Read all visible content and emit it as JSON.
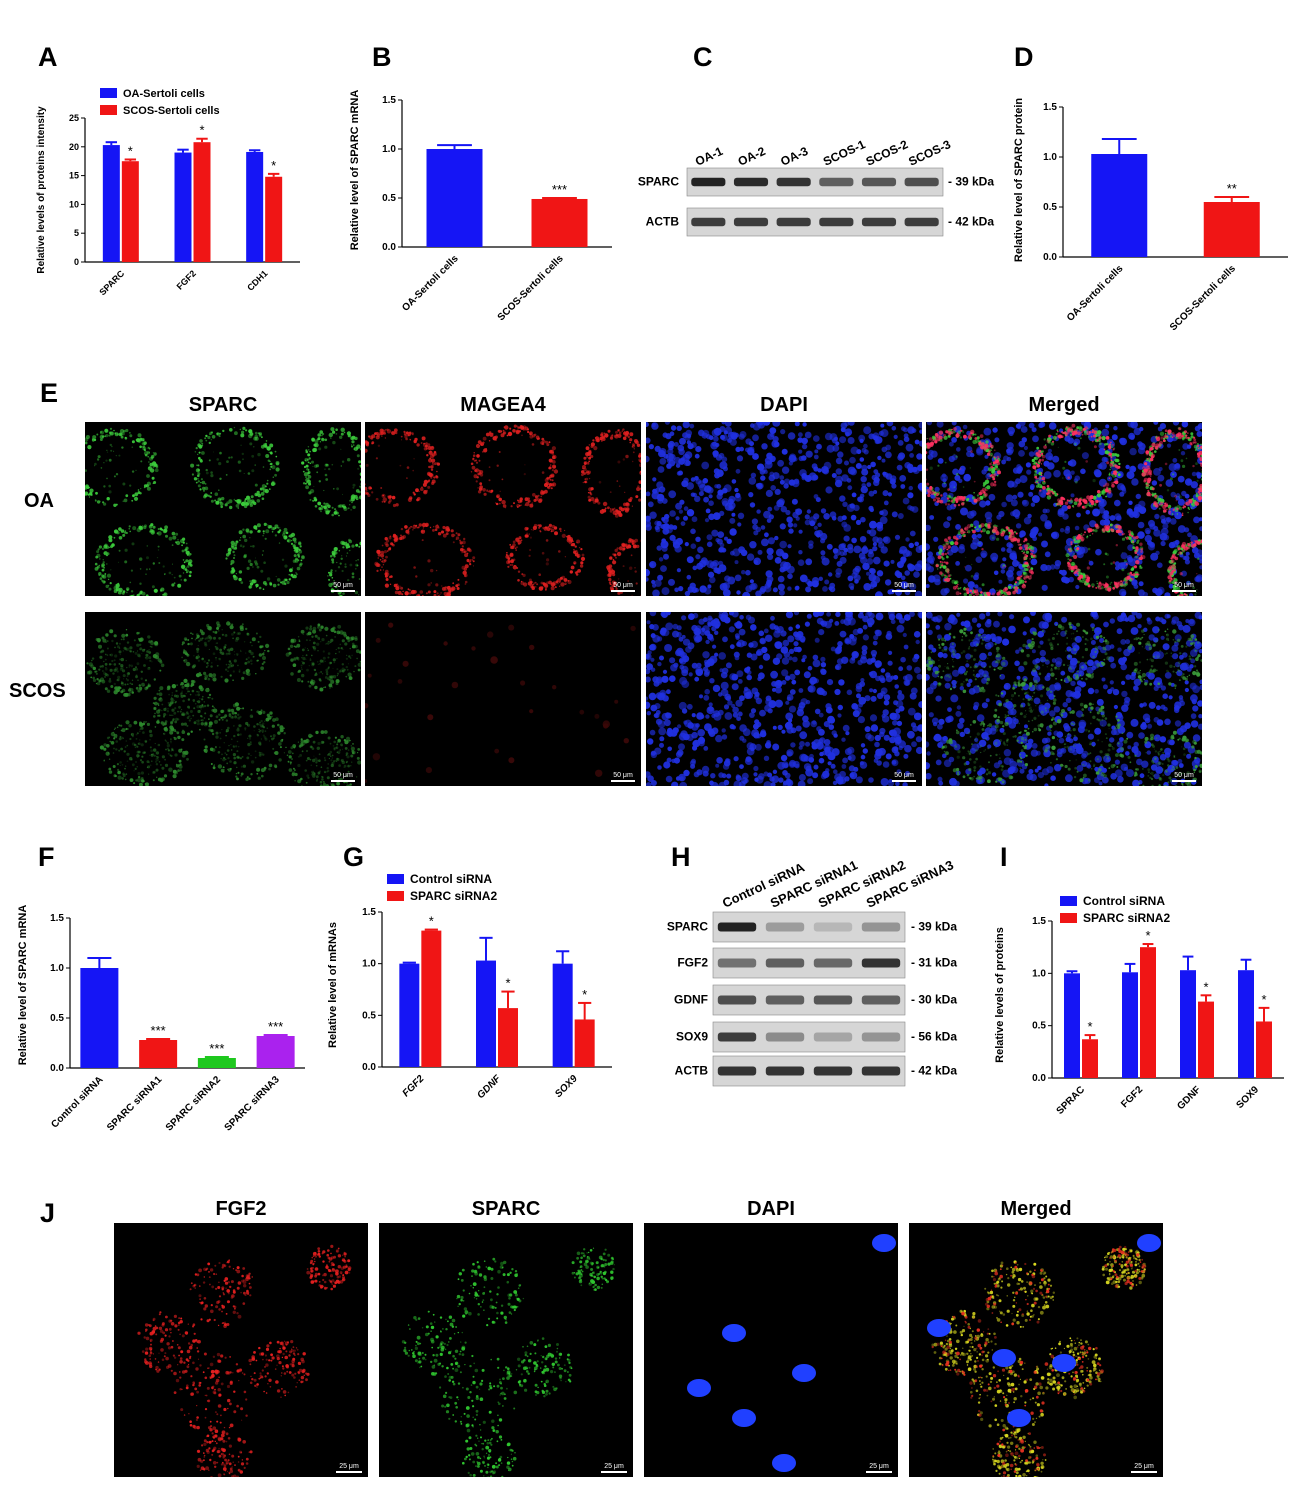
{
  "panels": {
    "A": "A",
    "B": "B",
    "C": "C",
    "D": "D",
    "E": "E",
    "F": "F",
    "G": "G",
    "H": "H",
    "I": "I",
    "J": "J"
  },
  "colors": {
    "blue": "#1515f5",
    "red": "#f01515",
    "green": "#1ec81e",
    "purple": "#aa22ee"
  },
  "chart_data": [
    {
      "panel": "A",
      "type": "bar",
      "ylabel": "Relative levels of proteins intensity",
      "ylim": [
        0,
        25
      ],
      "yticks": [
        "0",
        "5",
        "10",
        "15",
        "20",
        "25"
      ],
      "categories": [
        "SPARC",
        "FGF2",
        "CDH1"
      ],
      "series": [
        {
          "name": "OA-Sertoli cells",
          "color": "#1515f5",
          "values": [
            20.3,
            19.0,
            19.1
          ],
          "errors": [
            0.5,
            0.5,
            0.3
          ]
        },
        {
          "name": "SCOS-Sertoli cells",
          "color": "#f01515",
          "values": [
            17.5,
            20.8,
            14.8
          ],
          "errors": [
            0.3,
            0.6,
            0.5
          ]
        }
      ],
      "annotations": [
        "*",
        "*",
        "*"
      ]
    },
    {
      "panel": "B",
      "type": "bar",
      "ylabel": "Relative level of SPARC mRNA",
      "ylim": [
        0,
        1.5
      ],
      "yticks": [
        "0.0",
        "0.5",
        "1.0",
        "1.5"
      ],
      "categories": [
        "OA-Sertoli cells",
        "SCOS-Sertoli cells"
      ],
      "values": [
        1.0,
        0.49
      ],
      "errors": [
        0.04,
        0.01
      ],
      "colors": [
        "#1515f5",
        "#f01515"
      ],
      "annotations": [
        "",
        "***"
      ]
    },
    {
      "panel": "D",
      "type": "bar",
      "ylabel": "Relative level of SPARC protein",
      "ylim": [
        0,
        1.5
      ],
      "yticks": [
        "0.0",
        "0.5",
        "1.0",
        "1.5"
      ],
      "categories": [
        "OA-Sertoli cells",
        "SCOS-Sertoli cells"
      ],
      "values": [
        1.03,
        0.55
      ],
      "errors": [
        0.15,
        0.05
      ],
      "colors": [
        "#1515f5",
        "#f01515"
      ],
      "annotations": [
        "",
        "**"
      ]
    },
    {
      "panel": "F",
      "type": "bar",
      "ylabel": "Relative level of SPARC mRNA",
      "ylim": [
        0,
        1.5
      ],
      "yticks": [
        "0.0",
        "0.5",
        "1.0",
        "1.5"
      ],
      "categories": [
        "Control siRNA",
        "SPARC siRNA1",
        "SPARC siRNA2",
        "SPARC siRNA3"
      ],
      "values": [
        1.0,
        0.28,
        0.1,
        0.32
      ],
      "errors": [
        0.1,
        0.01,
        0.01,
        0.01
      ],
      "colors": [
        "#1515f5",
        "#f01515",
        "#1ec81e",
        "#aa22ee"
      ],
      "annotations": [
        "",
        "***",
        "***",
        "***"
      ]
    },
    {
      "panel": "G",
      "type": "bar",
      "ylabel": "Relative level of mRNAs",
      "ylim": [
        0,
        1.5
      ],
      "yticks": [
        "0.0",
        "0.5",
        "1.0",
        "1.5"
      ],
      "categories": [
        "FGF2",
        "GDNF",
        "SOX9"
      ],
      "series": [
        {
          "name": "Control siRNA",
          "color": "#1515f5",
          "values": [
            1.0,
            1.03,
            1.0
          ],
          "errors": [
            0.01,
            0.22,
            0.12
          ]
        },
        {
          "name": "SPARC siRNA2",
          "color": "#f01515",
          "values": [
            1.32,
            0.57,
            0.46
          ],
          "errors": [
            0.01,
            0.16,
            0.16
          ]
        }
      ],
      "annotations": [
        "*",
        "*",
        "*"
      ]
    },
    {
      "panel": "I",
      "type": "bar",
      "ylabel": "Relative levels of proteins",
      "ylim": [
        0,
        1.5
      ],
      "yticks": [
        "0.0",
        "0.5",
        "1.0",
        "1.5"
      ],
      "categories": [
        "SPRAC",
        "FGF2",
        "GDNF",
        "SOX9"
      ],
      "series": [
        {
          "name": "Control siRNA",
          "color": "#1515f5",
          "values": [
            1.0,
            1.01,
            1.03,
            1.03
          ],
          "errors": [
            0.02,
            0.08,
            0.13,
            0.1
          ]
        },
        {
          "name": "SPARC siRNA2",
          "color": "#f01515",
          "values": [
            0.37,
            1.25,
            0.73,
            0.54
          ],
          "errors": [
            0.04,
            0.03,
            0.06,
            0.13
          ]
        }
      ],
      "annotations": [
        "*",
        "*",
        "*",
        "*"
      ]
    }
  ],
  "blotC": {
    "lanes": [
      "OA-1",
      "OA-2",
      "OA-3",
      "SCOS-1",
      "SCOS-2",
      "SCOS-3"
    ],
    "rows": [
      {
        "label": "SPARC",
        "kda": "- 39 kDa"
      },
      {
        "label": "ACTB",
        "kda": "- 42 kDa"
      }
    ]
  },
  "blotH": {
    "lanes": [
      "Control siRNA",
      "SPARC siRNA1",
      "SPARC siRNA2",
      "SPARC siRNA3"
    ],
    "rows": [
      {
        "label": "SPARC",
        "kda": "- 39 kDa"
      },
      {
        "label": "FGF2",
        "kda": "- 31 kDa"
      },
      {
        "label": "GDNF",
        "kda": "- 30 kDa"
      },
      {
        "label": "SOX9",
        "kda": "- 56 kDa"
      },
      {
        "label": "ACTB",
        "kda": "- 42 kDa"
      }
    ]
  },
  "panelE": {
    "columns": [
      "SPARC",
      "MAGEA4",
      "DAPI",
      "Merged"
    ],
    "rows": [
      "OA",
      "SCOS"
    ],
    "scalebar": "50 μm"
  },
  "panelJ": {
    "columns": [
      "FGF2",
      "SPARC",
      "DAPI",
      "Merged"
    ],
    "scalebar": "25 μm"
  }
}
